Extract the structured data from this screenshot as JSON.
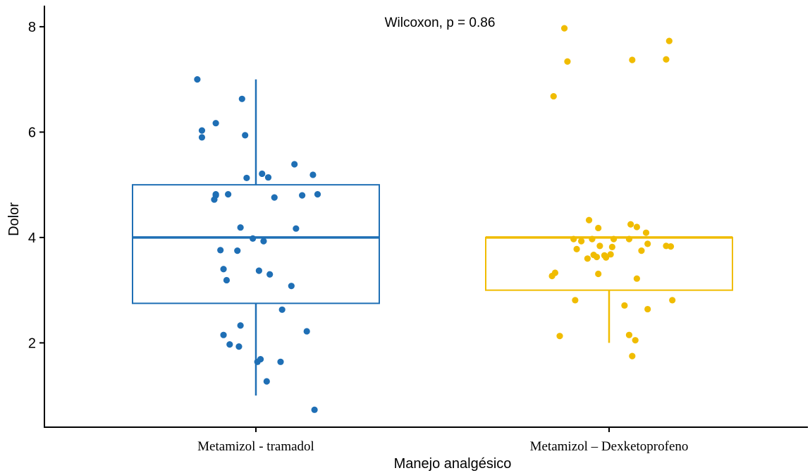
{
  "chart_data": {
    "type": "boxplot",
    "title": "",
    "xlabel": "Manejo analgésico",
    "ylabel": "Dolor",
    "ylim": [
      0.4,
      8.4
    ],
    "yticks": [
      2,
      4,
      6,
      8
    ],
    "grid": false,
    "annotation": "Wilcoxon, p = 0.86",
    "categories": [
      "Metamizol - tramadol",
      "Metamizol – Dexketoprofeno"
    ],
    "series": [
      {
        "category": "Metamizol - tramadol",
        "color": "#1f6fb5",
        "box": {
          "min": 1.0,
          "q1": 2.75,
          "median": 4.0,
          "q3": 5.0,
          "max": 7.0
        },
        "points": [
          [
            -0.38,
            7.0
          ],
          [
            -0.35,
            6.03
          ],
          [
            -0.35,
            5.9
          ],
          [
            -0.26,
            6.17
          ],
          [
            -0.09,
            6.63
          ],
          [
            -0.07,
            5.94
          ],
          [
            -0.06,
            5.13
          ],
          [
            0.04,
            5.21
          ],
          [
            0.08,
            5.14
          ],
          [
            0.25,
            5.39
          ],
          [
            0.37,
            5.19
          ],
          [
            -0.26,
            4.82
          ],
          [
            -0.26,
            4.8
          ],
          [
            -0.27,
            4.72
          ],
          [
            -0.18,
            4.82
          ],
          [
            0.12,
            4.76
          ],
          [
            0.3,
            4.8
          ],
          [
            0.4,
            4.82
          ],
          [
            -0.1,
            4.19
          ],
          [
            0.26,
            4.17
          ],
          [
            -0.02,
            3.98
          ],
          [
            0.05,
            3.93
          ],
          [
            -0.23,
            3.76
          ],
          [
            -0.12,
            3.75
          ],
          [
            -0.21,
            3.4
          ],
          [
            0.02,
            3.37
          ],
          [
            0.09,
            3.3
          ],
          [
            -0.19,
            3.19
          ],
          [
            0.23,
            3.08
          ],
          [
            0.17,
            2.63
          ],
          [
            -0.1,
            2.33
          ],
          [
            0.33,
            2.22
          ],
          [
            -0.21,
            2.15
          ],
          [
            -0.17,
            1.97
          ],
          [
            -0.11,
            1.93
          ],
          [
            0.03,
            1.69
          ],
          [
            0.01,
            1.64
          ],
          [
            0.16,
            1.64
          ],
          [
            0.07,
            1.27
          ],
          [
            0.38,
            0.73
          ]
        ]
      },
      {
        "category": "Metamizol – Dexketoprofeno",
        "color": "#f0bc00",
        "box": {
          "min": 2.0,
          "q1": 3.0,
          "median": 4.0,
          "q3": 4.0,
          "max": 4.0
        },
        "points": [
          [
            -0.29,
            7.97
          ],
          [
            -0.36,
            6.68
          ],
          [
            -0.27,
            7.34
          ],
          [
            0.15,
            7.37
          ],
          [
            0.37,
            7.38
          ],
          [
            0.39,
            7.73
          ],
          [
            -0.13,
            4.33
          ],
          [
            -0.07,
            4.18
          ],
          [
            0.14,
            4.25
          ],
          [
            0.18,
            4.2
          ],
          [
            0.24,
            4.09
          ],
          [
            -0.23,
            3.97
          ],
          [
            -0.18,
            3.93
          ],
          [
            -0.11,
            3.97
          ],
          [
            0.03,
            3.97
          ],
          [
            0.13,
            3.97
          ],
          [
            -0.21,
            3.78
          ],
          [
            -0.06,
            3.84
          ],
          [
            -0.14,
            3.6
          ],
          [
            -0.1,
            3.67
          ],
          [
            -0.08,
            3.63
          ],
          [
            -0.02,
            3.62
          ],
          [
            -0.03,
            3.66
          ],
          [
            0.01,
            3.68
          ],
          [
            0.25,
            3.88
          ],
          [
            0.21,
            3.75
          ],
          [
            0.37,
            3.84
          ],
          [
            0.4,
            3.83
          ],
          [
            0.02,
            3.82
          ],
          [
            -0.35,
            3.33
          ],
          [
            -0.37,
            3.27
          ],
          [
            -0.07,
            3.31
          ],
          [
            0.18,
            3.22
          ],
          [
            -0.22,
            2.81
          ],
          [
            0.1,
            2.71
          ],
          [
            0.25,
            2.64
          ],
          [
            0.41,
            2.81
          ],
          [
            -0.32,
            2.13
          ],
          [
            0.13,
            2.15
          ],
          [
            0.17,
            2.05
          ],
          [
            0.15,
            1.75
          ]
        ]
      }
    ]
  }
}
